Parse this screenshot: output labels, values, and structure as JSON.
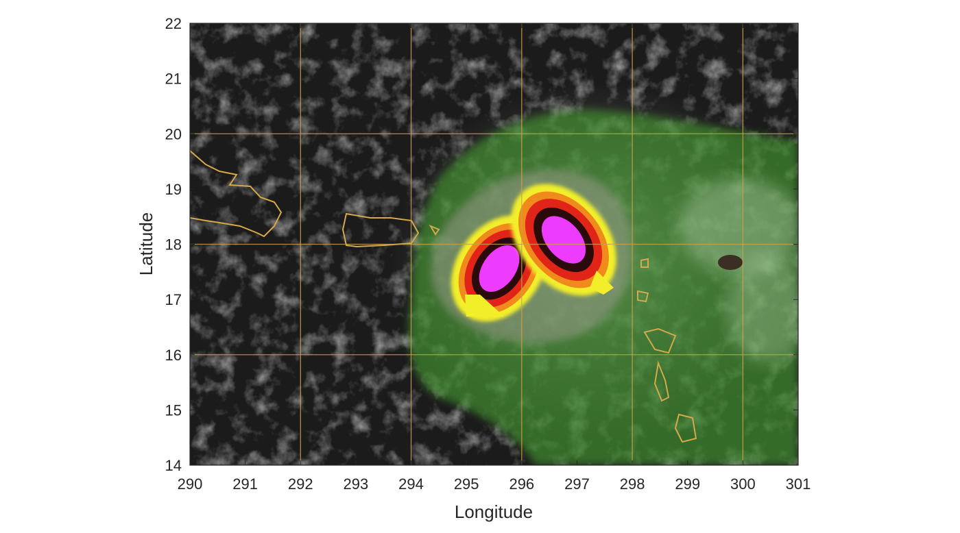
{
  "map": {
    "xlabel": "Longitude",
    "ylabel": "Latitude",
    "xlim": [
      290,
      301
    ],
    "ylim": [
      14,
      22
    ],
    "x_ticks": [
      "290",
      "291",
      "292",
      "293",
      "294",
      "295",
      "296",
      "297",
      "298",
      "299",
      "300",
      "301"
    ],
    "y_ticks": [
      "14",
      "15",
      "16",
      "17",
      "18",
      "19",
      "20",
      "21",
      "22"
    ],
    "graticule_lon": [
      292,
      294,
      296,
      298,
      300
    ],
    "graticule_lat": [
      16,
      18,
      20
    ],
    "colors": {
      "background_cloud": "#1a1a1a",
      "graticule": "#c9a24a",
      "coastline": "#d6a94a",
      "precip_low": "#3f8a2f",
      "precip_mid": "#f2ee2a",
      "precip_high": "#e02418",
      "precip_core": "#ee3cff"
    }
  }
}
